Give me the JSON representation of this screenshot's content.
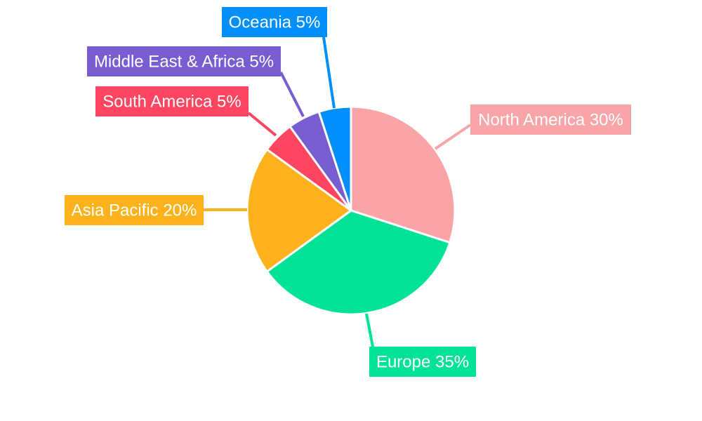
{
  "chart_data": {
    "type": "pie",
    "slices": [
      {
        "label": "North America",
        "value": 30,
        "display": "North America 30%",
        "color": "#F9A5A8"
      },
      {
        "label": "Europe",
        "value": 35,
        "display": "Europe 35%",
        "color": "#00E396"
      },
      {
        "label": "Asia Pacific",
        "value": 20,
        "display": "Asia Pacific 20%",
        "color": "#FDB11B"
      },
      {
        "label": "South America",
        "value": 5,
        "display": "South America 5%",
        "color": "#FF4560"
      },
      {
        "label": "Middle East & Africa",
        "value": 5,
        "display": "Middle East & Africa 5%",
        "color": "#775DD0"
      },
      {
        "label": "Oceania",
        "value": 5,
        "display": "Oceania 5%",
        "color": "#008FFB"
      }
    ],
    "start_angle_deg": 0,
    "direction": "clockwise",
    "legend": "none",
    "labels": "outside-with-leader-lines"
  }
}
